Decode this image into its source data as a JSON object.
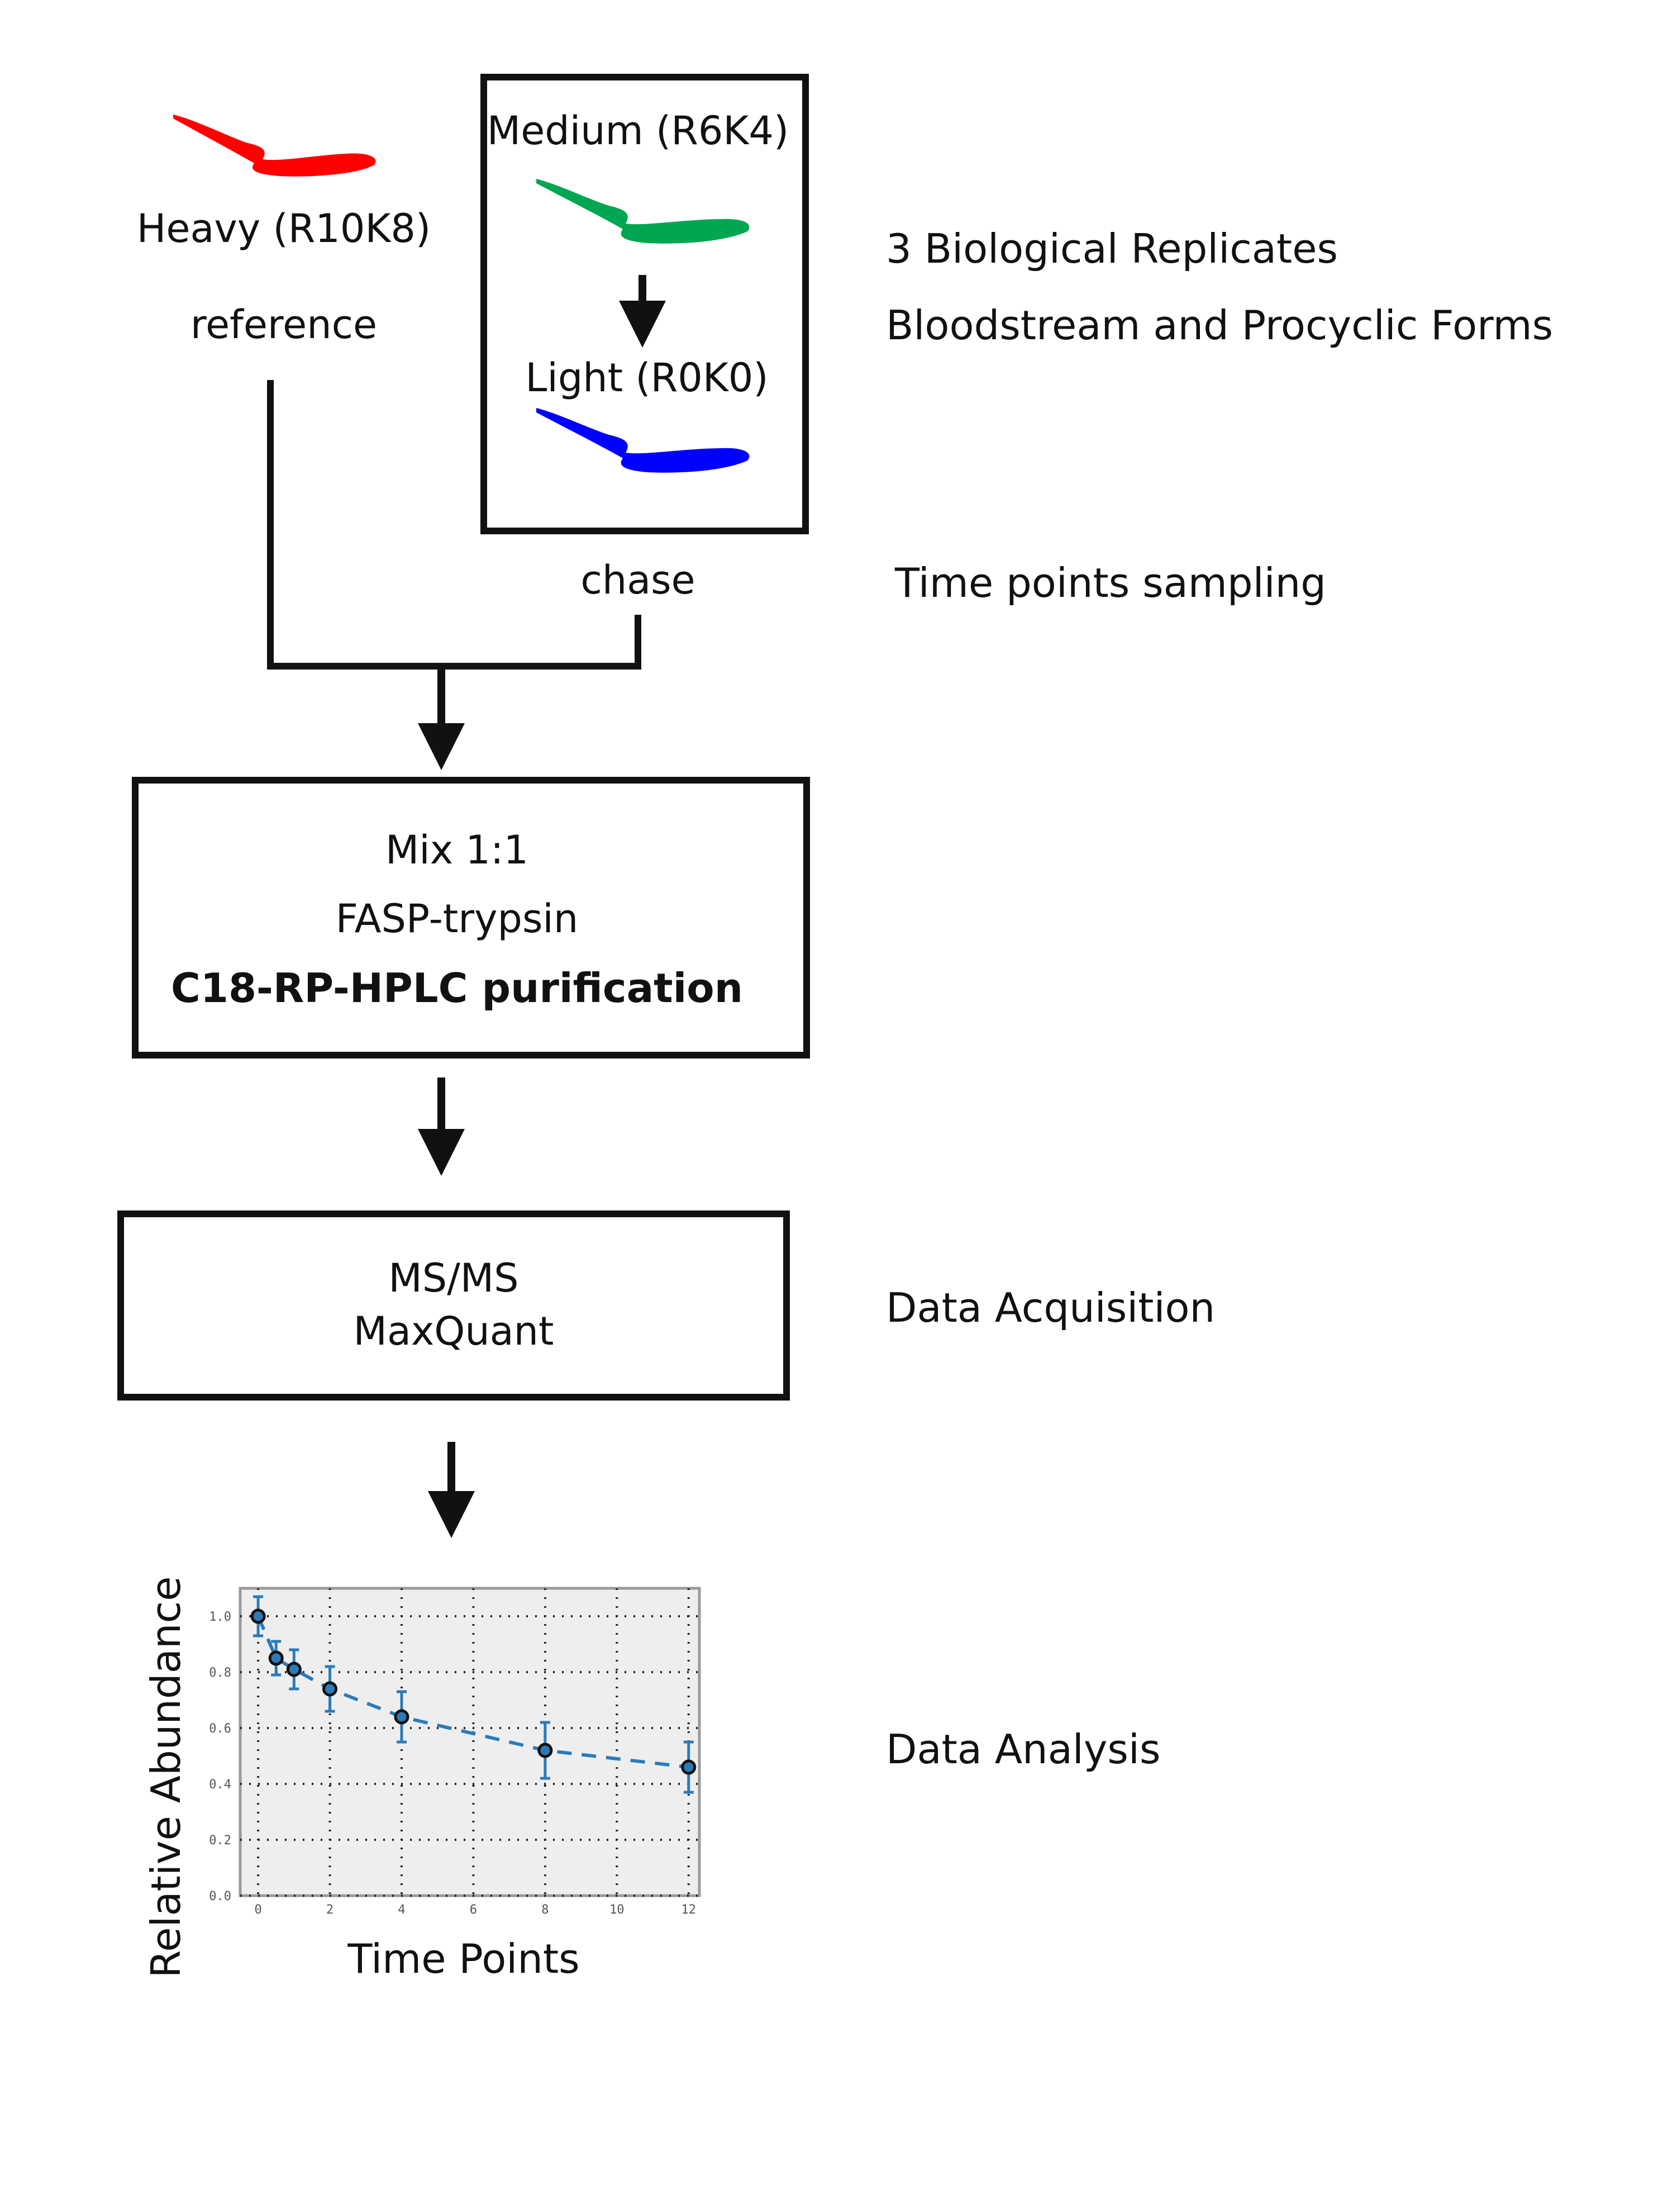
{
  "labels": {
    "heavy": "Heavy (R10K8)",
    "reference": "reference",
    "medium": "Medium (R6K4)",
    "light": "Light (R0K0)",
    "chase": "chase",
    "mix": "Mix 1:1",
    "fasp": "FASP-trypsin",
    "c18": "C18-RP-HPLC purification",
    "msms": "MS/MS",
    "maxquant": "MaxQuant"
  },
  "side_notes": {
    "replicates": "3 Biological Replicates",
    "forms": "Bloodstream and Procyclic Forms",
    "sampling": "Time points sampling",
    "acquisition": "Data Acquisition",
    "analysis": "Data Analysis"
  },
  "colors": {
    "heavy": "#ff0000",
    "medium": "#00a651",
    "light": "#0000ff",
    "series": "#2b7bb9"
  },
  "chart_data": {
    "type": "line",
    "xlabel": "Time Points",
    "ylabel": "Relative Abundance",
    "xlim": [
      -0.5,
      12.3
    ],
    "ylim": [
      0,
      1.1
    ],
    "xticks": [
      0,
      2,
      4,
      6,
      8,
      10,
      12
    ],
    "yticks": [
      0.0,
      0.2,
      0.4,
      0.6,
      0.8,
      1.0
    ],
    "grid": true,
    "series": [
      {
        "x": [
          0,
          0.5,
          1,
          2,
          4,
          8,
          12
        ],
        "y": [
          1.0,
          0.85,
          0.81,
          0.74,
          0.64,
          0.52,
          0.46
        ],
        "err": [
          0.07,
          0.06,
          0.07,
          0.08,
          0.09,
          0.1,
          0.09
        ]
      }
    ]
  }
}
